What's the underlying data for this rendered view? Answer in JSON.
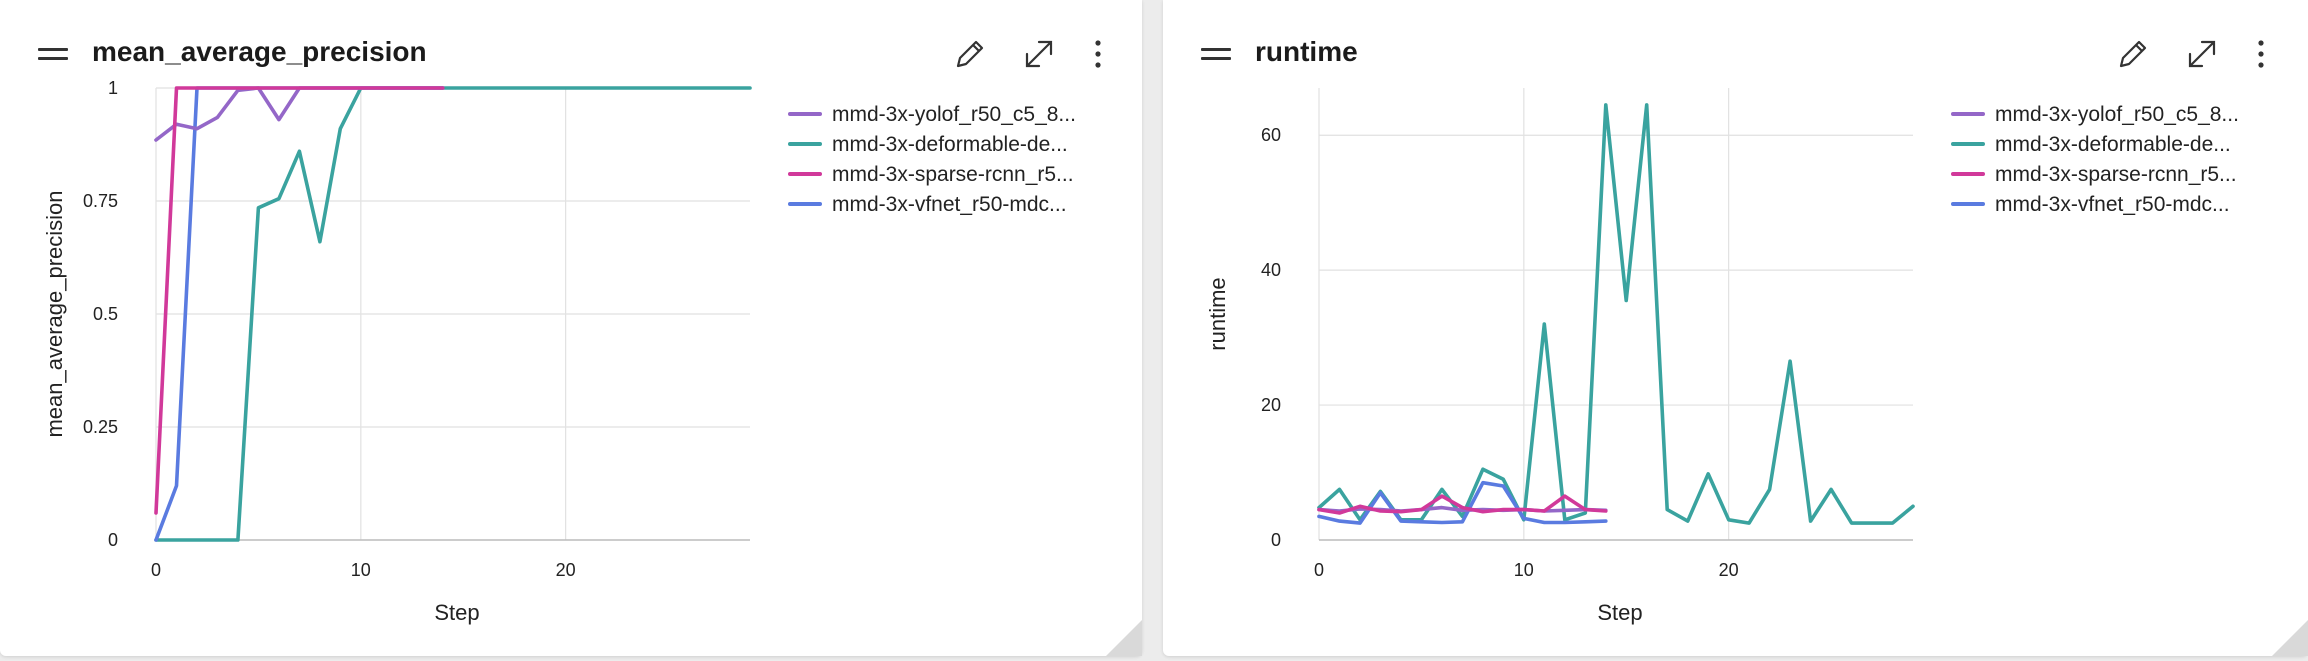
{
  "panels": [
    {
      "title": "mean_average_precision",
      "actions": {
        "edit_icon": "pencil-icon",
        "expand_icon": "expand-icon",
        "more_icon": "more-vertical-icon"
      }
    },
    {
      "title": "runtime",
      "actions": {
        "edit_icon": "pencil-icon",
        "expand_icon": "expand-icon",
        "more_icon": "more-vertical-icon"
      }
    }
  ],
  "chart_data": [
    {
      "type": "line",
      "title": "mean_average_precision",
      "xlabel": "Step",
      "ylabel": "mean_average_precision",
      "xlim": [
        0,
        29
      ],
      "ylim": [
        0,
        1
      ],
      "xticks": [
        0,
        10,
        20
      ],
      "yticks": [
        0,
        0.25,
        0.5,
        0.75,
        1
      ],
      "ytick_labels": [
        "0",
        "0.25",
        "0.5",
        "0.75",
        "1"
      ],
      "grid": true,
      "legend_position": "right",
      "series": [
        {
          "name": "mmd-3x-yolof_r50_c5_8...",
          "color": "#9467c8",
          "x": [
            0,
            1,
            2,
            3,
            4,
            5,
            6,
            7,
            8,
            9,
            10,
            11,
            12,
            13,
            14
          ],
          "y": [
            0.885,
            0.92,
            0.91,
            0.935,
            0.995,
            1.0,
            0.93,
            1.0,
            1.0,
            1.0,
            1.0,
            1.0,
            1.0,
            1.0,
            1.0
          ]
        },
        {
          "name": "mmd-3x-deformable-de...",
          "color": "#3aa39f",
          "x": [
            0,
            1,
            2,
            3,
            4,
            5,
            6,
            7,
            8,
            9,
            10,
            11,
            12,
            13,
            14,
            15,
            16,
            17,
            18,
            19,
            20,
            21,
            22,
            23,
            24,
            25,
            26,
            27,
            28,
            29
          ],
          "y": [
            0,
            0,
            0,
            0,
            0,
            0.735,
            0.755,
            0.86,
            0.66,
            0.91,
            1.0,
            1.0,
            1.0,
            1.0,
            1.0,
            1.0,
            1.0,
            1.0,
            1.0,
            1.0,
            1.0,
            1.0,
            1.0,
            1.0,
            1.0,
            1.0,
            1.0,
            1.0,
            1.0,
            1.0
          ]
        },
        {
          "name": "mmd-3x-sparse-rcnn_r5...",
          "color": "#d1399a",
          "x": [
            0,
            1,
            2,
            3,
            4,
            5,
            6,
            7,
            8,
            9,
            10,
            11,
            12,
            13,
            14
          ],
          "y": [
            0.06,
            1.0,
            1.0,
            1.0,
            1.0,
            1.0,
            1.0,
            1.0,
            1.0,
            1.0,
            1.0,
            1.0,
            1.0,
            1.0,
            1.0
          ]
        },
        {
          "name": "mmd-3x-vfnet_r50-mdc...",
          "color": "#5a7be0",
          "x": [
            0,
            1,
            2,
            3,
            4,
            5,
            6,
            7,
            8,
            9,
            10,
            11,
            12,
            13,
            14
          ],
          "y": [
            0,
            0.12,
            1.0,
            1.0,
            1.0,
            1.0,
            1.0,
            1.0,
            1.0,
            1.0,
            1.0,
            1.0,
            1.0,
            1.0,
            1.0
          ]
        }
      ]
    },
    {
      "type": "line",
      "title": "runtime",
      "xlabel": "Step",
      "ylabel": "runtime",
      "xlim": [
        0,
        29
      ],
      "ylim": [
        0,
        67
      ],
      "xticks": [
        0,
        10,
        20
      ],
      "yticks": [
        0,
        20,
        40,
        60
      ],
      "ytick_labels": [
        "0",
        "20",
        "40",
        "60"
      ],
      "grid": true,
      "legend_position": "right",
      "series": [
        {
          "name": "mmd-3x-yolof_r50_c5_8...",
          "color": "#9467c8",
          "x": [
            0,
            1,
            2,
            3,
            4,
            5,
            6,
            7,
            8,
            9,
            10,
            11,
            12,
            13,
            14
          ],
          "y": [
            4.5,
            4.3,
            4.6,
            4.5,
            4.3,
            4.5,
            4.8,
            4.4,
            4.5,
            4.4,
            4.5,
            4.3,
            4.4,
            4.5,
            4.4
          ]
        },
        {
          "name": "mmd-3x-deformable-de...",
          "color": "#3aa39f",
          "x": [
            0,
            1,
            2,
            3,
            4,
            5,
            6,
            7,
            8,
            9,
            10,
            11,
            12,
            13,
            14,
            15,
            16,
            17,
            18,
            19,
            20,
            21,
            22,
            23,
            24,
            25,
            26,
            27,
            28,
            29
          ],
          "y": [
            4.8,
            7.5,
            3.0,
            7.2,
            3.0,
            3.0,
            7.5,
            3.5,
            10.5,
            9.0,
            3.0,
            32.0,
            3.0,
            4.0,
            64.5,
            35.5,
            64.5,
            4.5,
            2.8,
            9.8,
            3.0,
            2.5,
            7.5,
            26.5,
            2.8,
            7.5,
            2.5,
            2.5,
            2.5,
            5.0
          ]
        },
        {
          "name": "mmd-3x-sparse-rcnn_r5...",
          "color": "#d1399a",
          "x": [
            0,
            1,
            2,
            3,
            4,
            5,
            6,
            7,
            8,
            9,
            10,
            11,
            12,
            13,
            14
          ],
          "y": [
            4.5,
            4.0,
            5.0,
            4.3,
            4.2,
            4.5,
            6.5,
            4.8,
            4.2,
            4.5,
            4.5,
            4.3,
            6.5,
            4.5,
            4.3
          ]
        },
        {
          "name": "mmd-3x-vfnet_r50-mdc...",
          "color": "#5a7be0",
          "x": [
            0,
            1,
            2,
            3,
            4,
            5,
            6,
            7,
            8,
            9,
            10,
            11,
            12,
            13,
            14
          ],
          "y": [
            3.5,
            2.8,
            2.5,
            7.0,
            2.8,
            2.7,
            2.6,
            2.7,
            8.5,
            8.0,
            3.2,
            2.6,
            2.6,
            2.7,
            2.8
          ]
        }
      ]
    }
  ]
}
